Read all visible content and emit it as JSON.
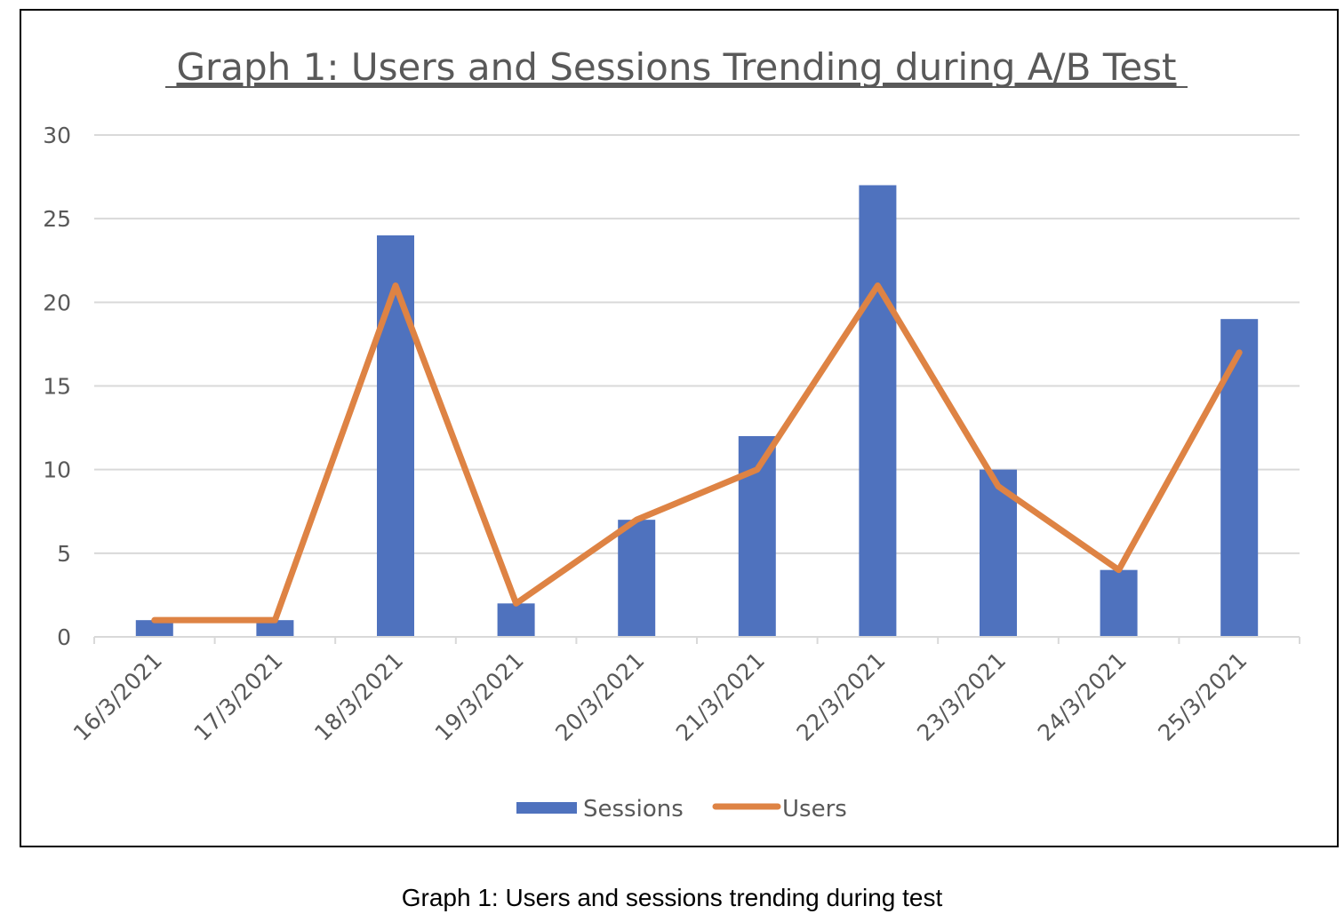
{
  "caption": "Graph 1: Users and sessions trending during test",
  "colors": {
    "sessions": "#4f72be",
    "users": "#de8344",
    "grid": "#d9d9d9",
    "text": "#595959"
  },
  "chart_data": {
    "type": "bar",
    "title": "Graph 1: Users and Sessions Trending during A/B Test",
    "xlabel": "",
    "ylabel": "",
    "categories": [
      "16/3/2021",
      "17/3/2021",
      "18/3/2021",
      "19/3/2021",
      "20/3/2021",
      "21/3/2021",
      "22/3/2021",
      "23/3/2021",
      "24/3/2021",
      "25/3/2021"
    ],
    "series": [
      {
        "name": "Sessions",
        "type": "bar",
        "values": [
          1,
          1,
          24,
          2,
          7,
          12,
          27,
          10,
          4,
          19
        ]
      },
      {
        "name": "Users",
        "type": "line",
        "values": [
          1,
          1,
          21,
          2,
          7,
          10,
          21,
          9,
          4,
          17
        ]
      }
    ],
    "ylim": [
      0,
      30
    ],
    "yticks": [
      0,
      5,
      10,
      15,
      20,
      25,
      30
    ],
    "grid": true,
    "legend": "bottom"
  }
}
